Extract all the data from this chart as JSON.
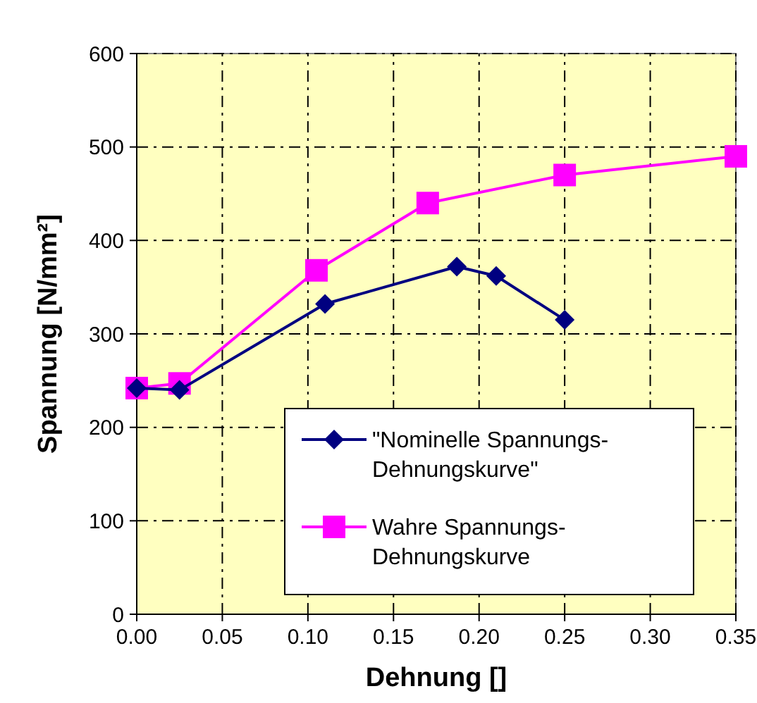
{
  "chart_data": {
    "type": "line",
    "xlabel": "Dehnung []",
    "ylabel": "Spannung [N/mm²]",
    "xlim": [
      0,
      0.35
    ],
    "ylim": [
      0,
      600
    ],
    "xticks": [
      {
        "value": 0,
        "label": "0.00"
      },
      {
        "value": 0.05,
        "label": "0.05"
      },
      {
        "value": 0.1,
        "label": "0.10"
      },
      {
        "value": 0.15,
        "label": "0.15"
      },
      {
        "value": 0.2,
        "label": "0.20"
      },
      {
        "value": 0.25,
        "label": "0.25"
      },
      {
        "value": 0.3,
        "label": "0.30"
      },
      {
        "value": 0.35,
        "label": "0.35"
      }
    ],
    "yticks": [
      0,
      100,
      200,
      300,
      400,
      500,
      600
    ],
    "grid": true,
    "legend": "bottom right",
    "line_style": "solid",
    "series": [
      {
        "name": "\"Nominelle Spannungs-Dehnungskurve\"",
        "color": "#000080",
        "marker": "diamond",
        "x": [
          0,
          0.025,
          0.11,
          0.187,
          0.21,
          0.25
        ],
        "values": [
          242,
          240,
          332,
          372,
          362,
          315
        ]
      },
      {
        "name": "Wahre Spannungs-Dehnungskurve",
        "color": "#ff00ff",
        "marker": "square",
        "x": [
          0,
          0.025,
          0.105,
          0.17,
          0.25,
          0.35
        ],
        "values": [
          242,
          247,
          368,
          440,
          470,
          490
        ]
      }
    ]
  }
}
